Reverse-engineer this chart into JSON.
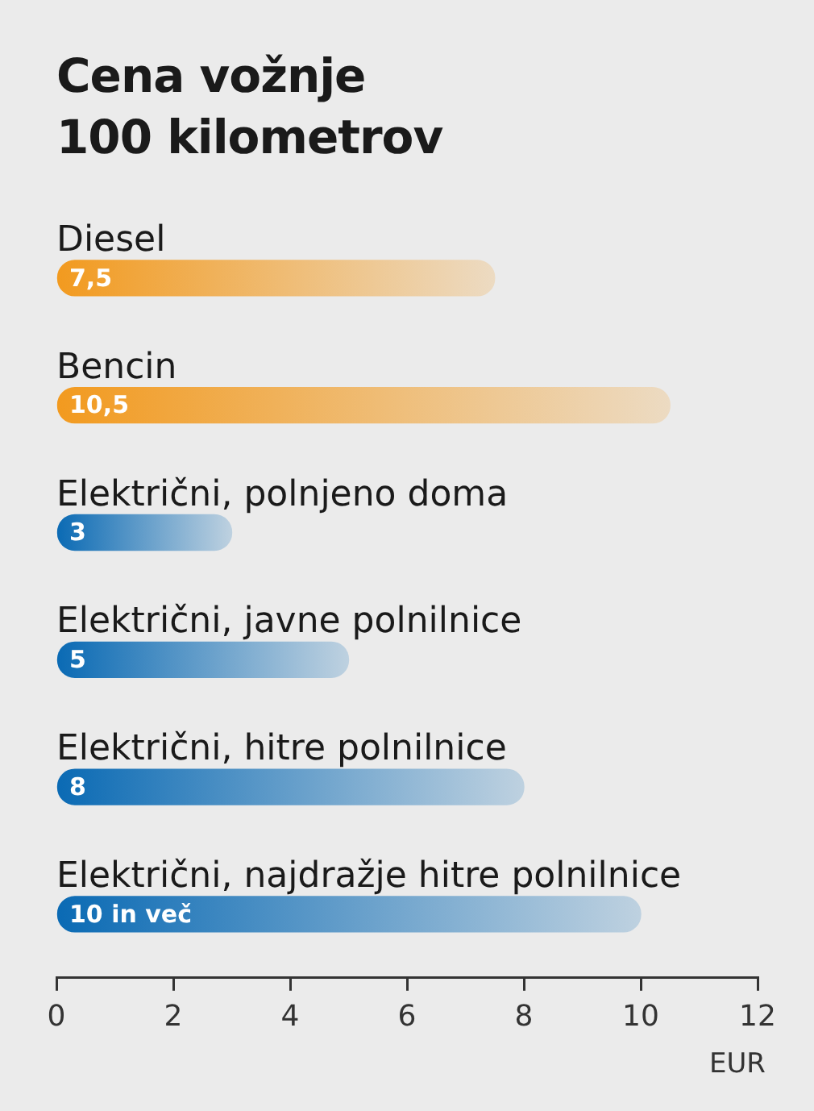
{
  "chart_data": {
    "type": "bar",
    "orientation": "horizontal",
    "title": "Cena vožnje\n100 kilometrov",
    "xlabel": "EUR",
    "categories": [
      "Diesel",
      "Bencin",
      "Električni, polnjeno doma",
      "Električni, javne polnilnice",
      "Električni, hitre polnilnice",
      "Električni, najdražje hitre polnilnice"
    ],
    "values": [
      7.5,
      10.5,
      3,
      5,
      8,
      10
    ],
    "value_labels": [
      "7,5",
      "10,5",
      "3",
      "5",
      "8",
      "10 in več"
    ],
    "colors": [
      "#f29a1f",
      "#f29a1f",
      "#0a6ab4",
      "#0a6ab4",
      "#0a6ab4",
      "#0a6ab4"
    ],
    "xlim": [
      0,
      12
    ],
    "xticks": [
      0,
      2,
      4,
      6,
      8,
      10,
      12
    ],
    "grid": false,
    "legend": false
  }
}
